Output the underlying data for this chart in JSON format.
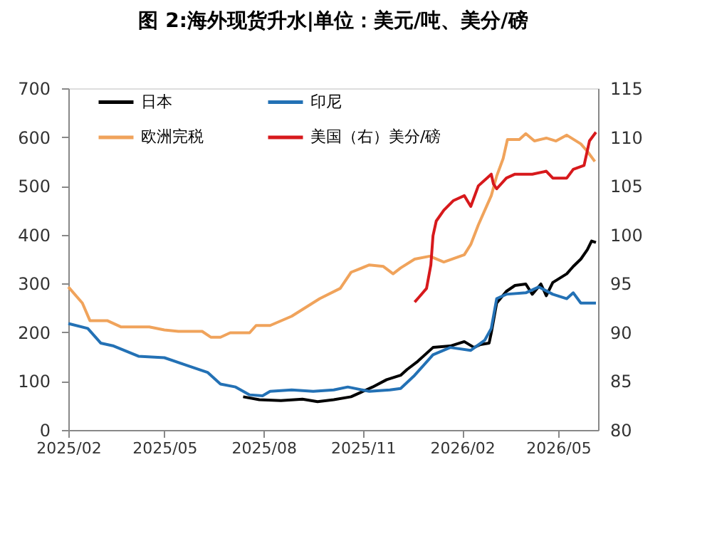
{
  "chart_data": {
    "type": "line",
    "title": "图 2:海外现货升水|单位：美元/吨、美分/磅",
    "xlim": [
      "2025-02-01",
      "2026-06-07"
    ],
    "xticks": [
      {
        "value": "2025-02-01",
        "label": "2025/02"
      },
      {
        "value": "2025-05-01",
        "label": "2025/05"
      },
      {
        "value": "2025-08-01",
        "label": "2025/08"
      },
      {
        "value": "2025-11-01",
        "label": "2025/11"
      },
      {
        "value": "2026-02-01",
        "label": "2026/02"
      },
      {
        "value": "2026-05-01",
        "label": "2026/05"
      }
    ],
    "ylim": [
      0,
      700
    ],
    "yticks": [
      0,
      100,
      200,
      300,
      400,
      500,
      600,
      700
    ],
    "y2lim": [
      80,
      115
    ],
    "y2ticks": [
      80,
      85,
      90,
      95,
      100,
      105,
      110,
      115
    ],
    "grid": false,
    "legend": "top",
    "marker": "none",
    "line_style": "solid",
    "series": [
      {
        "name": "日本",
        "color": "#000000",
        "x": [
          "2025-07-13",
          "2025-07-28",
          "2025-08-17",
          "2025-09-06",
          "2025-09-20",
          "2025-10-05",
          "2025-10-21",
          "2025-11-10",
          "2025-11-23",
          "2025-12-06",
          "2025-12-12",
          "2025-12-21",
          "2026-01-05",
          "2026-01-21",
          "2026-02-03",
          "2026-02-12",
          "2026-02-18",
          "2026-02-26",
          "2026-02-28",
          "2026-03-05",
          "2026-03-14",
          "2026-03-22",
          "2026-04-01",
          "2026-04-07",
          "2026-04-15",
          "2026-04-20",
          "2026-04-26",
          "2026-05-09",
          "2026-05-15",
          "2026-05-22",
          "2026-05-28",
          "2026-06-01",
          "2026-06-05"
        ],
        "values": [
          68,
          62,
          60,
          63,
          58,
          62,
          68,
          88,
          103,
          112,
          124,
          139,
          169,
          172,
          181,
          169,
          175,
          178,
          199,
          260,
          284,
          296,
          299,
          278,
          299,
          275,
          302,
          320,
          335,
          350,
          369,
          387,
          384
        ]
      },
      {
        "name": "印尼",
        "color": "#2371b5",
        "x": [
          "2025-02-01",
          "2025-02-19",
          "2025-03-03",
          "2025-03-15",
          "2025-04-07",
          "2025-05-01",
          "2025-05-21",
          "2025-06-10",
          "2025-06-22",
          "2025-07-06",
          "2025-07-19",
          "2025-07-31",
          "2025-08-07",
          "2025-08-27",
          "2025-09-16",
          "2025-10-05",
          "2025-10-18",
          "2025-11-07",
          "2025-11-26",
          "2025-12-06",
          "2025-12-19",
          "2026-01-05",
          "2026-01-21",
          "2026-02-09",
          "2026-02-22",
          "2026-02-28",
          "2026-03-05",
          "2026-03-14",
          "2026-04-01",
          "2026-04-13",
          "2026-04-26",
          "2026-05-09",
          "2026-05-15",
          "2026-05-22",
          "2026-06-05"
        ],
        "values": [
          218,
          208,
          178,
          172,
          151,
          148,
          133,
          118,
          94,
          88,
          72,
          70,
          79,
          82,
          79,
          82,
          88,
          79,
          82,
          85,
          112,
          154,
          169,
          163,
          184,
          208,
          269,
          278,
          281,
          293,
          278,
          269,
          281,
          260,
          260
        ]
      },
      {
        "name": "欧洲完税",
        "color": "#f0a35b",
        "x": [
          "2025-02-01",
          "2025-02-14",
          "2025-02-21",
          "2025-03-09",
          "2025-03-22",
          "2025-04-17",
          "2025-05-01",
          "2025-05-14",
          "2025-06-05",
          "2025-06-13",
          "2025-06-22",
          "2025-07-01",
          "2025-07-19",
          "2025-07-25",
          "2025-08-07",
          "2025-08-27",
          "2025-09-22",
          "2025-10-11",
          "2025-10-21",
          "2025-11-07",
          "2025-11-20",
          "2025-11-29",
          "2025-12-06",
          "2025-12-19",
          "2026-01-02",
          "2026-01-15",
          "2026-02-03",
          "2026-02-09",
          "2026-02-16",
          "2026-02-22",
          "2026-02-28",
          "2026-03-05",
          "2026-03-11",
          "2026-03-15",
          "2026-03-26",
          "2026-04-01",
          "2026-04-09",
          "2026-04-20",
          "2026-04-29",
          "2026-05-09",
          "2026-05-22",
          "2026-05-28",
          "2026-06-04"
        ],
        "values": [
          293,
          260,
          224,
          224,
          211,
          211,
          205,
          202,
          202,
          190,
          190,
          199,
          199,
          214,
          214,
          233,
          269,
          290,
          323,
          338,
          335,
          320,
          332,
          350,
          356,
          344,
          359,
          380,
          420,
          450,
          480,
          520,
          556,
          595,
          595,
          607,
          592,
          598,
          592,
          604,
          586,
          571,
          550
        ]
      },
      {
        "name": "美国（右）美分/磅",
        "color": "#d7191c",
        "axis": "y2",
        "x": [
          "2025-12-19",
          "2025-12-23",
          "2025-12-30",
          "2026-01-03",
          "2026-01-05",
          "2026-01-08",
          "2026-01-15",
          "2026-01-24",
          "2026-02-03",
          "2026-02-09",
          "2026-02-16",
          "2026-02-24",
          "2026-02-28",
          "2026-03-02",
          "2026-03-05",
          "2026-03-14",
          "2026-03-22",
          "2026-04-07",
          "2026-04-20",
          "2026-04-26",
          "2026-05-09",
          "2026-05-15",
          "2026-05-25",
          "2026-05-30",
          "2026-06-05"
        ],
        "values": [
          93.1,
          93.6,
          94.5,
          96.9,
          99.9,
          101.4,
          102.5,
          103.5,
          104.0,
          102.9,
          105.0,
          105.8,
          106.2,
          105.2,
          104.7,
          105.8,
          106.2,
          106.2,
          106.5,
          105.8,
          105.8,
          106.7,
          107.1,
          109.6,
          110.5
        ]
      }
    ]
  }
}
